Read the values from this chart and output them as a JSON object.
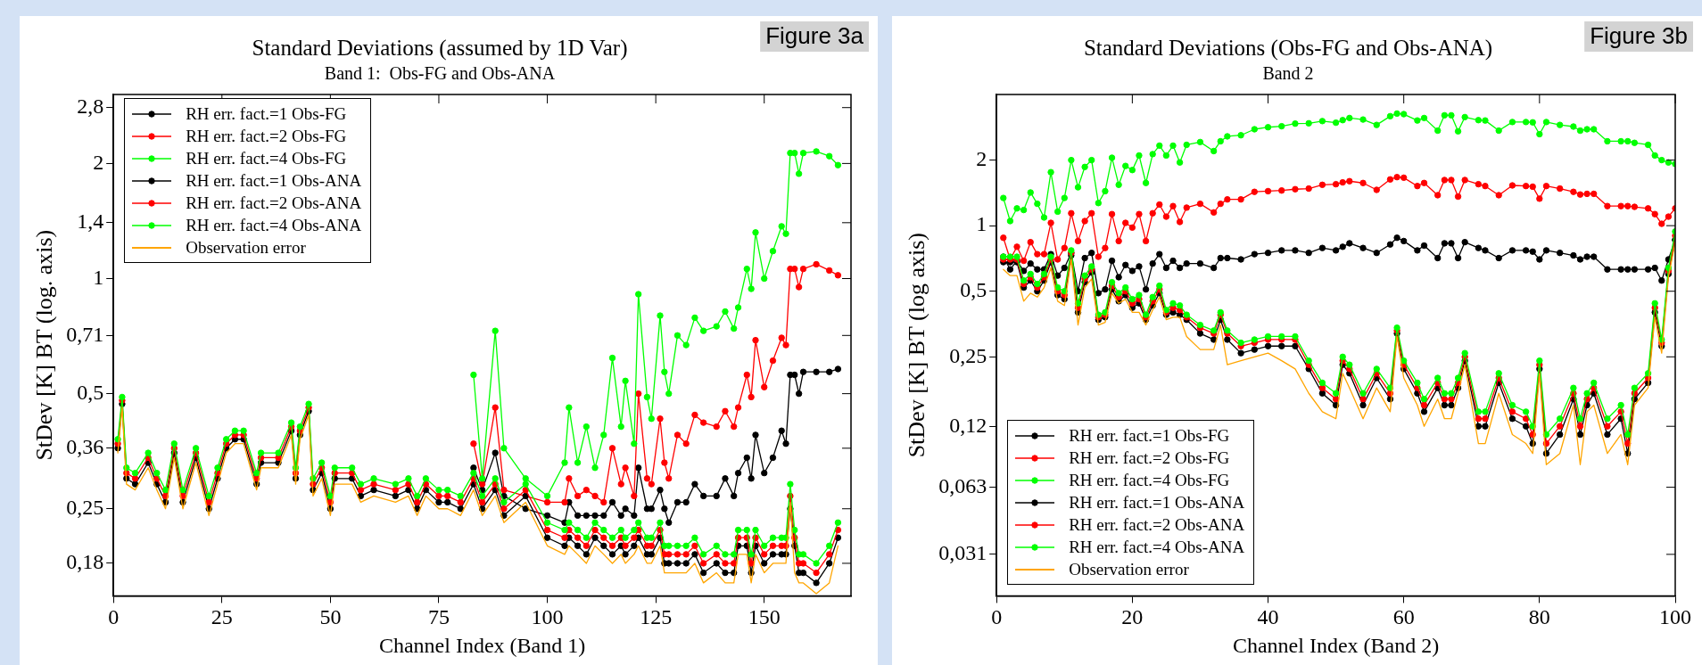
{
  "chart_data": [
    {
      "type": "line",
      "title": "Standard Deviations (assumed by 1D Var)",
      "subtitle": "Band 1:  Obs-FG and Obs-ANA",
      "xlabel": "Channel Index (Band 1)",
      "ylabel": "StDev [K] BT (log. axis)",
      "annotations": [
        "Figure 3a"
      ],
      "log": true,
      "grid": false,
      "legend": "top left",
      "xlim": [
        0,
        170
      ],
      "xticks": [
        0,
        25,
        50,
        75,
        100,
        125,
        150
      ],
      "ylim": [
        0.148,
        3.03
      ],
      "yticks": [
        {
          "value": 0.18,
          "label": "0,18"
        },
        {
          "value": 0.25,
          "label": "0,25"
        },
        {
          "value": 0.36,
          "label": "0,36"
        },
        {
          "value": 0.5,
          "label": "0,5"
        },
        {
          "value": 0.71,
          "label": "0,71"
        },
        {
          "value": 1,
          "label": "1"
        },
        {
          "value": 1.4,
          "label": "1,4"
        },
        {
          "value": 2,
          "label": "2"
        },
        {
          "value": 2.8,
          "label": "2,8"
        }
      ],
      "series": [
        {
          "name": "RH err. fact.=1 Obs-FG",
          "color": "#000000",
          "marker": "circle",
          "x": [
            83,
            85,
            88,
            90,
            95,
            100,
            104,
            105,
            107,
            109,
            111,
            113,
            115,
            117,
            118,
            120,
            121,
            123,
            124,
            126,
            127,
            128,
            130,
            132,
            134,
            136,
            139,
            141,
            143,
            144,
            146,
            147,
            148,
            150,
            152,
            154,
            155,
            156,
            157,
            158,
            159,
            162,
            165,
            167
          ],
          "values": [
            0.32,
            0.28,
            0.35,
            0.27,
            0.25,
            0.24,
            0.23,
            0.26,
            0.24,
            0.24,
            0.24,
            0.24,
            0.26,
            0.24,
            0.25,
            0.24,
            0.32,
            0.25,
            0.25,
            0.28,
            0.25,
            0.23,
            0.26,
            0.26,
            0.29,
            0.27,
            0.27,
            0.3,
            0.27,
            0.31,
            0.34,
            0.3,
            0.39,
            0.31,
            0.34,
            0.4,
            0.37,
            0.56,
            0.56,
            0.5,
            0.57,
            0.57,
            0.57,
            0.58
          ]
        },
        {
          "name": "RH err. fact.=2 Obs-FG",
          "color": "#ff0000",
          "marker": "circle",
          "x": [
            83,
            85,
            88,
            90,
            100,
            104,
            105,
            107,
            109,
            111,
            113,
            115,
            117,
            118,
            120,
            121,
            123,
            124,
            126,
            127,
            128,
            130,
            132,
            134,
            136,
            139,
            141,
            143,
            144,
            146,
            147,
            148,
            150,
            152,
            154,
            155,
            156,
            157,
            158,
            159,
            162,
            165,
            167
          ],
          "values": [
            0.37,
            0.29,
            0.46,
            0.28,
            0.26,
            0.26,
            0.3,
            0.27,
            0.28,
            0.27,
            0.26,
            0.36,
            0.29,
            0.32,
            0.27,
            0.5,
            0.3,
            0.29,
            0.43,
            0.33,
            0.3,
            0.39,
            0.37,
            0.44,
            0.42,
            0.41,
            0.45,
            0.41,
            0.46,
            0.56,
            0.49,
            0.69,
            0.52,
            0.61,
            0.7,
            0.67,
            1.06,
            1.06,
            0.95,
            1.06,
            1.09,
            1.05,
            1.02
          ]
        },
        {
          "name": "RH err. fact.=4 Obs-FG",
          "color": "#00ff00",
          "marker": "circle",
          "x": [
            83,
            85,
            88,
            90,
            95,
            100,
            104,
            105,
            107,
            109,
            111,
            113,
            115,
            117,
            118,
            120,
            121,
            123,
            124,
            126,
            127,
            128,
            130,
            132,
            134,
            136,
            139,
            141,
            143,
            144,
            146,
            147,
            148,
            150,
            152,
            154,
            155,
            156,
            157,
            158,
            159,
            162,
            165,
            167
          ],
          "values": [
            0.56,
            0.3,
            0.73,
            0.36,
            0.3,
            0.27,
            0.33,
            0.46,
            0.33,
            0.41,
            0.32,
            0.39,
            0.62,
            0.41,
            0.54,
            0.37,
            0.91,
            0.49,
            0.43,
            0.8,
            0.57,
            0.5,
            0.71,
            0.67,
            0.79,
            0.73,
            0.75,
            0.82,
            0.74,
            0.84,
            1.06,
            0.94,
            1.32,
            1.0,
            1.18,
            1.37,
            1.31,
            2.13,
            2.13,
            1.88,
            2.13,
            2.15,
            2.09,
            1.98
          ]
        },
        {
          "name": "RH err. fact.=1 Obs-ANA",
          "color": "#000000",
          "marker": "circle",
          "x": [
            1,
            2,
            3,
            5,
            8,
            10,
            12,
            14,
            16,
            19,
            22,
            24,
            26,
            28,
            30,
            33,
            34,
            38,
            41,
            42,
            43,
            45,
            46,
            48,
            50,
            51,
            55,
            57,
            60,
            65,
            68,
            70,
            72,
            75,
            77,
            80,
            83,
            85,
            88,
            90,
            95,
            100,
            104,
            105,
            107,
            109,
            111,
            113,
            115,
            117,
            118,
            120,
            121,
            123,
            124,
            126,
            127,
            128,
            130,
            132,
            134,
            136,
            139,
            141,
            143,
            144,
            146,
            147,
            148,
            150,
            152,
            154,
            155,
            156,
            157,
            158,
            159,
            162,
            165,
            167
          ],
          "values": [
            0.36,
            0.47,
            0.3,
            0.29,
            0.33,
            0.29,
            0.26,
            0.35,
            0.26,
            0.34,
            0.25,
            0.3,
            0.36,
            0.38,
            0.38,
            0.29,
            0.33,
            0.33,
            0.4,
            0.3,
            0.39,
            0.45,
            0.28,
            0.31,
            0.25,
            0.3,
            0.3,
            0.27,
            0.28,
            0.27,
            0.28,
            0.25,
            0.28,
            0.26,
            0.26,
            0.25,
            0.29,
            0.25,
            0.28,
            0.24,
            0.27,
            0.21,
            0.2,
            0.21,
            0.2,
            0.19,
            0.21,
            0.2,
            0.19,
            0.2,
            0.19,
            0.2,
            0.21,
            0.19,
            0.19,
            0.21,
            0.18,
            0.18,
            0.18,
            0.18,
            0.19,
            0.17,
            0.18,
            0.17,
            0.17,
            0.2,
            0.2,
            0.17,
            0.2,
            0.18,
            0.19,
            0.19,
            0.19,
            0.25,
            0.2,
            0.17,
            0.17,
            0.16,
            0.18,
            0.21
          ]
        },
        {
          "name": "RH err. fact.=2 Obs-ANA",
          "color": "#ff0000",
          "marker": "circle",
          "x": [
            1,
            2,
            3,
            5,
            8,
            10,
            12,
            14,
            16,
            19,
            22,
            24,
            26,
            28,
            30,
            33,
            34,
            38,
            41,
            42,
            43,
            45,
            46,
            48,
            50,
            51,
            55,
            57,
            60,
            65,
            68,
            70,
            72,
            75,
            77,
            80,
            83,
            85,
            88,
            90,
            95,
            100,
            104,
            105,
            107,
            109,
            111,
            113,
            115,
            117,
            118,
            120,
            121,
            123,
            124,
            126,
            127,
            128,
            130,
            132,
            134,
            136,
            139,
            141,
            143,
            144,
            146,
            147,
            148,
            150,
            152,
            154,
            155,
            156,
            157,
            158,
            159,
            162,
            165,
            167
          ],
          "values": [
            0.37,
            0.48,
            0.31,
            0.3,
            0.34,
            0.3,
            0.27,
            0.36,
            0.27,
            0.35,
            0.26,
            0.31,
            0.37,
            0.39,
            0.39,
            0.3,
            0.34,
            0.34,
            0.41,
            0.31,
            0.4,
            0.46,
            0.29,
            0.32,
            0.26,
            0.31,
            0.31,
            0.28,
            0.29,
            0.28,
            0.29,
            0.26,
            0.29,
            0.27,
            0.27,
            0.26,
            0.3,
            0.26,
            0.29,
            0.25,
            0.28,
            0.22,
            0.21,
            0.22,
            0.21,
            0.2,
            0.22,
            0.21,
            0.2,
            0.21,
            0.2,
            0.21,
            0.22,
            0.2,
            0.2,
            0.22,
            0.19,
            0.19,
            0.19,
            0.19,
            0.2,
            0.18,
            0.19,
            0.18,
            0.18,
            0.21,
            0.21,
            0.18,
            0.21,
            0.19,
            0.2,
            0.2,
            0.2,
            0.27,
            0.21,
            0.18,
            0.18,
            0.17,
            0.19,
            0.22
          ]
        },
        {
          "name": "RH err. fact.=4 Obs-ANA",
          "color": "#00ff00",
          "marker": "circle",
          "x": [
            1,
            2,
            3,
            5,
            8,
            10,
            12,
            14,
            16,
            19,
            22,
            24,
            26,
            28,
            30,
            33,
            34,
            38,
            41,
            42,
            43,
            45,
            46,
            48,
            50,
            51,
            55,
            57,
            60,
            65,
            68,
            70,
            72,
            75,
            77,
            80,
            83,
            85,
            88,
            90,
            95,
            100,
            104,
            105,
            107,
            109,
            111,
            113,
            115,
            117,
            118,
            120,
            121,
            123,
            124,
            126,
            127,
            128,
            130,
            132,
            134,
            136,
            139,
            141,
            143,
            144,
            146,
            147,
            148,
            150,
            152,
            154,
            155,
            156,
            157,
            158,
            159,
            162,
            165,
            167
          ],
          "values": [
            0.38,
            0.49,
            0.32,
            0.31,
            0.35,
            0.31,
            0.28,
            0.37,
            0.28,
            0.36,
            0.27,
            0.32,
            0.38,
            0.4,
            0.4,
            0.31,
            0.35,
            0.35,
            0.42,
            0.32,
            0.41,
            0.47,
            0.3,
            0.33,
            0.27,
            0.32,
            0.32,
            0.29,
            0.3,
            0.29,
            0.3,
            0.27,
            0.3,
            0.28,
            0.28,
            0.27,
            0.31,
            0.27,
            0.3,
            0.26,
            0.29,
            0.23,
            0.22,
            0.23,
            0.22,
            0.21,
            0.23,
            0.22,
            0.21,
            0.22,
            0.21,
            0.22,
            0.23,
            0.21,
            0.21,
            0.23,
            0.2,
            0.2,
            0.2,
            0.2,
            0.21,
            0.19,
            0.2,
            0.19,
            0.19,
            0.22,
            0.22,
            0.19,
            0.22,
            0.2,
            0.21,
            0.21,
            0.21,
            0.29,
            0.22,
            0.19,
            0.19,
            0.18,
            0.2,
            0.23
          ]
        },
        {
          "name": "Observation error",
          "color": "#ffa500",
          "marker": "none",
          "x": [
            1,
            2,
            3,
            5,
            8,
            10,
            12,
            14,
            16,
            19,
            22,
            24,
            26,
            28,
            30,
            33,
            34,
            38,
            41,
            42,
            43,
            45,
            46,
            48,
            50,
            51,
            55,
            57,
            60,
            65,
            68,
            70,
            72,
            75,
            77,
            80,
            83,
            85,
            88,
            90,
            95,
            100,
            104,
            105,
            107,
            109,
            111,
            113,
            115,
            117,
            118,
            120,
            121,
            123,
            124,
            126,
            127,
            128,
            130,
            132,
            134,
            136,
            139,
            141,
            143,
            144,
            146,
            147,
            148,
            150,
            152,
            154,
            155,
            156,
            157,
            158,
            159,
            162,
            165,
            167
          ],
          "values": [
            0.35,
            0.46,
            0.29,
            0.28,
            0.32,
            0.28,
            0.25,
            0.34,
            0.25,
            0.33,
            0.24,
            0.29,
            0.35,
            0.37,
            0.37,
            0.28,
            0.32,
            0.32,
            0.39,
            0.29,
            0.38,
            0.44,
            0.27,
            0.3,
            0.24,
            0.29,
            0.29,
            0.26,
            0.27,
            0.26,
            0.27,
            0.24,
            0.27,
            0.25,
            0.25,
            0.24,
            0.28,
            0.24,
            0.27,
            0.23,
            0.26,
            0.2,
            0.19,
            0.2,
            0.19,
            0.18,
            0.2,
            0.19,
            0.18,
            0.19,
            0.18,
            0.19,
            0.2,
            0.18,
            0.18,
            0.2,
            0.17,
            0.17,
            0.17,
            0.17,
            0.18,
            0.16,
            0.17,
            0.16,
            0.16,
            0.19,
            0.19,
            0.16,
            0.19,
            0.17,
            0.18,
            0.18,
            0.18,
            0.26,
            0.17,
            0.16,
            0.16,
            0.15,
            0.16,
            0.2
          ]
        }
      ]
    },
    {
      "type": "line",
      "title": "Standard Deviations (Obs-FG and Obs-ANA)",
      "subtitle": "Band 2",
      "xlabel": "Channel Index (Band 2)",
      "ylabel": "StDev [K] BT (log axis)",
      "annotations": [
        "Figure 3b"
      ],
      "log": true,
      "grid": false,
      "legend": "bottom left",
      "xlim": [
        0,
        100
      ],
      "xticks": [
        0,
        20,
        40,
        60,
        80,
        100
      ],
      "ylim": [
        0.02,
        4
      ],
      "yticks": [
        {
          "value": 0.031,
          "label": "0,031"
        },
        {
          "value": 0.063,
          "label": "0,063"
        },
        {
          "value": 0.12,
          "label": "0,12"
        },
        {
          "value": 0.25,
          "label": "0,25"
        },
        {
          "value": 0.5,
          "label": "0,5"
        },
        {
          "value": 1,
          "label": "1"
        },
        {
          "value": 2,
          "label": "2"
        }
      ],
      "series": [
        {
          "name": "RH err. fact.=1 Obs-FG",
          "color": "#000000",
          "marker": "circle",
          "x": [
            1,
            2,
            3,
            4,
            5,
            6,
            7,
            8,
            9,
            10,
            11,
            12,
            13,
            14,
            15,
            16,
            17,
            18,
            19,
            20,
            21,
            22,
            23,
            24,
            25,
            26,
            27,
            28,
            30,
            32,
            33,
            34,
            36,
            38,
            40,
            42,
            44,
            46,
            48,
            50,
            51,
            52,
            54,
            56,
            58,
            59,
            60,
            62,
            63,
            65,
            66,
            67,
            68,
            69,
            71,
            72,
            74,
            76,
            78,
            79,
            80,
            81,
            83,
            85,
            86,
            87,
            88,
            90,
            92,
            93,
            94,
            96,
            97,
            98,
            99,
            100
          ],
          "values": [
            0.72,
            0.63,
            0.69,
            0.62,
            0.67,
            0.63,
            0.63,
            0.74,
            0.59,
            0.64,
            0.75,
            0.5,
            0.71,
            0.75,
            0.49,
            0.51,
            0.69,
            0.58,
            0.66,
            0.62,
            0.65,
            0.51,
            0.67,
            0.74,
            0.64,
            0.69,
            0.64,
            0.67,
            0.67,
            0.64,
            0.71,
            0.71,
            0.7,
            0.74,
            0.75,
            0.77,
            0.77,
            0.75,
            0.79,
            0.77,
            0.8,
            0.83,
            0.79,
            0.75,
            0.82,
            0.88,
            0.85,
            0.77,
            0.81,
            0.71,
            0.83,
            0.83,
            0.71,
            0.84,
            0.79,
            0.77,
            0.71,
            0.77,
            0.77,
            0.76,
            0.7,
            0.77,
            0.75,
            0.73,
            0.7,
            0.72,
            0.72,
            0.63,
            0.63,
            0.63,
            0.63,
            0.63,
            0.64,
            0.56,
            0.7,
            0.86
          ]
        },
        {
          "name": "RH err. fact.=2 Obs-FG",
          "color": "#ff0000",
          "marker": "circle",
          "x": [
            1,
            2,
            3,
            4,
            5,
            6,
            7,
            8,
            9,
            10,
            11,
            12,
            13,
            14,
            15,
            16,
            17,
            18,
            19,
            20,
            21,
            22,
            23,
            24,
            25,
            26,
            27,
            28,
            30,
            32,
            33,
            34,
            36,
            38,
            40,
            42,
            44,
            46,
            48,
            50,
            51,
            52,
            54,
            56,
            58,
            59,
            60,
            62,
            63,
            65,
            66,
            67,
            68,
            69,
            71,
            72,
            74,
            76,
            78,
            79,
            80,
            81,
            83,
            85,
            86,
            87,
            88,
            90,
            92,
            93,
            94,
            96,
            97,
            98,
            99,
            100
          ],
          "values": [
            0.88,
            0.7,
            0.8,
            0.69,
            0.84,
            0.74,
            0.74,
            1.03,
            0.7,
            0.79,
            1.14,
            0.85,
            1.05,
            1.14,
            0.72,
            0.79,
            1.13,
            0.85,
            1.03,
            0.98,
            1.13,
            0.85,
            1.14,
            1.25,
            1.1,
            1.23,
            1.04,
            1.21,
            1.26,
            1.15,
            1.26,
            1.32,
            1.32,
            1.43,
            1.44,
            1.45,
            1.47,
            1.48,
            1.54,
            1.55,
            1.58,
            1.6,
            1.57,
            1.46,
            1.63,
            1.67,
            1.66,
            1.52,
            1.57,
            1.38,
            1.62,
            1.62,
            1.36,
            1.62,
            1.55,
            1.52,
            1.38,
            1.53,
            1.52,
            1.51,
            1.33,
            1.52,
            1.48,
            1.43,
            1.39,
            1.4,
            1.4,
            1.23,
            1.23,
            1.23,
            1.22,
            1.2,
            1.13,
            1.02,
            1.1,
            1.2
          ]
        },
        {
          "name": "RH err. fact.=4 Obs-FG",
          "color": "#00ff00",
          "marker": "circle",
          "x": [
            1,
            2,
            3,
            4,
            5,
            6,
            7,
            8,
            9,
            10,
            11,
            12,
            13,
            14,
            15,
            16,
            17,
            18,
            19,
            20,
            21,
            22,
            23,
            24,
            25,
            26,
            27,
            28,
            30,
            32,
            33,
            34,
            36,
            38,
            40,
            42,
            44,
            46,
            48,
            50,
            51,
            52,
            54,
            56,
            58,
            59,
            60,
            62,
            63,
            65,
            66,
            67,
            68,
            69,
            71,
            72,
            74,
            76,
            78,
            79,
            80,
            81,
            83,
            85,
            86,
            87,
            88,
            90,
            92,
            93,
            94,
            96,
            97,
            98,
            99,
            100
          ],
          "values": [
            1.34,
            1.05,
            1.2,
            1.18,
            1.42,
            1.26,
            1.09,
            1.76,
            1.16,
            1.34,
            2.0,
            1.5,
            1.86,
            2.0,
            1.27,
            1.44,
            2.05,
            1.54,
            1.88,
            1.8,
            2.1,
            1.57,
            2.13,
            2.33,
            2.1,
            2.33,
            1.95,
            2.35,
            2.42,
            2.2,
            2.44,
            2.57,
            2.6,
            2.77,
            2.83,
            2.86,
            2.94,
            2.95,
            3.02,
            2.97,
            3.05,
            3.12,
            3.07,
            2.9,
            3.18,
            3.27,
            3.25,
            3.04,
            3.12,
            2.73,
            3.21,
            3.21,
            2.71,
            3.15,
            3.05,
            3.04,
            2.73,
            2.99,
            2.99,
            2.98,
            2.63,
            2.99,
            2.9,
            2.85,
            2.73,
            2.77,
            2.77,
            2.44,
            2.44,
            2.44,
            2.4,
            2.35,
            2.1,
            2.0,
            1.95,
            1.92
          ]
        },
        {
          "name": "RH err. fact.=1 Obs-ANA",
          "color": "#000000",
          "marker": "circle",
          "x": [
            1,
            2,
            3,
            4,
            5,
            6,
            7,
            8,
            9,
            10,
            11,
            12,
            13,
            14,
            15,
            16,
            17,
            18,
            19,
            20,
            21,
            22,
            23,
            24,
            25,
            26,
            27,
            28,
            30,
            32,
            33,
            34,
            36,
            38,
            40,
            42,
            44,
            46,
            48,
            50,
            51,
            52,
            54,
            56,
            58,
            59,
            60,
            62,
            63,
            65,
            66,
            67,
            68,
            69,
            71,
            72,
            74,
            76,
            78,
            79,
            80,
            81,
            83,
            85,
            86,
            87,
            88,
            90,
            92,
            93,
            94,
            96,
            97,
            98,
            99,
            100
          ],
          "values": [
            0.68,
            0.68,
            0.68,
            0.52,
            0.56,
            0.5,
            0.56,
            0.68,
            0.48,
            0.46,
            0.73,
            0.4,
            0.55,
            0.61,
            0.37,
            0.38,
            0.51,
            0.45,
            0.48,
            0.42,
            0.44,
            0.37,
            0.43,
            0.49,
            0.39,
            0.4,
            0.39,
            0.37,
            0.32,
            0.3,
            0.37,
            0.3,
            0.26,
            0.27,
            0.28,
            0.28,
            0.28,
            0.22,
            0.17,
            0.15,
            0.23,
            0.21,
            0.15,
            0.2,
            0.16,
            0.32,
            0.22,
            0.17,
            0.14,
            0.18,
            0.15,
            0.15,
            0.18,
            0.24,
            0.12,
            0.12,
            0.19,
            0.13,
            0.12,
            0.1,
            0.22,
            0.09,
            0.11,
            0.16,
            0.11,
            0.15,
            0.17,
            0.11,
            0.13,
            0.09,
            0.16,
            0.19,
            0.4,
            0.28,
            0.6,
            0.86
          ]
        },
        {
          "name": "RH err. fact.=2 Obs-ANA",
          "color": "#ff0000",
          "marker": "circle",
          "x": [
            1,
            2,
            3,
            4,
            5,
            6,
            7,
            8,
            9,
            10,
            11,
            12,
            13,
            14,
            15,
            16,
            17,
            18,
            19,
            20,
            21,
            22,
            23,
            24,
            25,
            26,
            27,
            28,
            30,
            32,
            33,
            34,
            36,
            38,
            40,
            42,
            44,
            46,
            48,
            50,
            51,
            52,
            54,
            56,
            58,
            59,
            60,
            62,
            63,
            65,
            66,
            67,
            68,
            69,
            71,
            72,
            74,
            76,
            78,
            79,
            80,
            81,
            83,
            85,
            86,
            87,
            88,
            90,
            92,
            93,
            94,
            96,
            97,
            98,
            99,
            100
          ],
          "values": [
            0.7,
            0.7,
            0.7,
            0.54,
            0.58,
            0.52,
            0.58,
            0.7,
            0.5,
            0.48,
            0.75,
            0.42,
            0.57,
            0.63,
            0.38,
            0.39,
            0.53,
            0.47,
            0.5,
            0.44,
            0.46,
            0.38,
            0.45,
            0.51,
            0.4,
            0.42,
            0.41,
            0.38,
            0.34,
            0.32,
            0.39,
            0.32,
            0.28,
            0.29,
            0.3,
            0.3,
            0.3,
            0.23,
            0.18,
            0.16,
            0.24,
            0.22,
            0.16,
            0.21,
            0.17,
            0.33,
            0.23,
            0.18,
            0.15,
            0.19,
            0.16,
            0.16,
            0.19,
            0.25,
            0.13,
            0.13,
            0.2,
            0.14,
            0.13,
            0.11,
            0.23,
            0.1,
            0.12,
            0.17,
            0.12,
            0.16,
            0.18,
            0.12,
            0.14,
            0.1,
            0.17,
            0.2,
            0.42,
            0.29,
            0.62,
            0.9
          ]
        },
        {
          "name": "RH err. fact.=4 Obs-ANA",
          "color": "#00ff00",
          "marker": "circle",
          "x": [
            1,
            2,
            3,
            4,
            5,
            6,
            7,
            8,
            9,
            10,
            11,
            12,
            13,
            14,
            15,
            16,
            17,
            18,
            19,
            20,
            21,
            22,
            23,
            24,
            25,
            26,
            27,
            28,
            30,
            32,
            33,
            34,
            36,
            38,
            40,
            42,
            44,
            46,
            48,
            50,
            51,
            52,
            54,
            56,
            58,
            59,
            60,
            62,
            63,
            65,
            66,
            67,
            68,
            69,
            71,
            72,
            74,
            76,
            78,
            79,
            80,
            81,
            83,
            85,
            86,
            87,
            88,
            90,
            92,
            93,
            94,
            96,
            97,
            98,
            99,
            100
          ],
          "values": [
            0.72,
            0.72,
            0.72,
            0.56,
            0.6,
            0.54,
            0.6,
            0.72,
            0.52,
            0.5,
            0.77,
            0.44,
            0.59,
            0.65,
            0.39,
            0.4,
            0.55,
            0.49,
            0.52,
            0.46,
            0.48,
            0.39,
            0.47,
            0.53,
            0.41,
            0.44,
            0.43,
            0.39,
            0.35,
            0.33,
            0.4,
            0.33,
            0.29,
            0.3,
            0.31,
            0.31,
            0.31,
            0.24,
            0.19,
            0.17,
            0.25,
            0.23,
            0.17,
            0.22,
            0.18,
            0.34,
            0.24,
            0.19,
            0.16,
            0.2,
            0.17,
            0.17,
            0.2,
            0.26,
            0.14,
            0.14,
            0.21,
            0.15,
            0.14,
            0.12,
            0.24,
            0.11,
            0.13,
            0.18,
            0.13,
            0.17,
            0.19,
            0.13,
            0.15,
            0.11,
            0.18,
            0.21,
            0.44,
            0.3,
            0.64,
            0.94
          ]
        },
        {
          "name": "Observation error",
          "color": "#ffa500",
          "marker": "none",
          "x": [
            1,
            2,
            3,
            4,
            5,
            6,
            7,
            8,
            9,
            10,
            11,
            12,
            13,
            14,
            15,
            16,
            17,
            18,
            19,
            20,
            21,
            22,
            23,
            24,
            25,
            26,
            27,
            28,
            30,
            32,
            33,
            34,
            36,
            38,
            40,
            42,
            44,
            46,
            48,
            50,
            51,
            52,
            54,
            56,
            58,
            59,
            60,
            62,
            63,
            65,
            66,
            67,
            68,
            69,
            71,
            72,
            74,
            76,
            78,
            79,
            80,
            81,
            83,
            85,
            86,
            87,
            88,
            90,
            92,
            93,
            94,
            96,
            97,
            98,
            99,
            100
          ],
          "values": [
            0.63,
            0.59,
            0.59,
            0.45,
            0.49,
            0.47,
            0.52,
            0.64,
            0.45,
            0.43,
            0.7,
            0.35,
            0.52,
            0.57,
            0.35,
            0.36,
            0.49,
            0.44,
            0.46,
            0.4,
            0.4,
            0.35,
            0.41,
            0.47,
            0.37,
            0.38,
            0.38,
            0.31,
            0.27,
            0.27,
            0.35,
            0.23,
            0.24,
            0.25,
            0.26,
            0.24,
            0.22,
            0.17,
            0.14,
            0.13,
            0.21,
            0.18,
            0.13,
            0.18,
            0.14,
            0.31,
            0.2,
            0.15,
            0.12,
            0.16,
            0.13,
            0.13,
            0.17,
            0.23,
            0.1,
            0.1,
            0.17,
            0.11,
            0.1,
            0.09,
            0.21,
            0.08,
            0.09,
            0.15,
            0.08,
            0.14,
            0.15,
            0.09,
            0.11,
            0.08,
            0.15,
            0.18,
            0.38,
            0.26,
            0.58,
            0.84
          ]
        }
      ]
    }
  ]
}
